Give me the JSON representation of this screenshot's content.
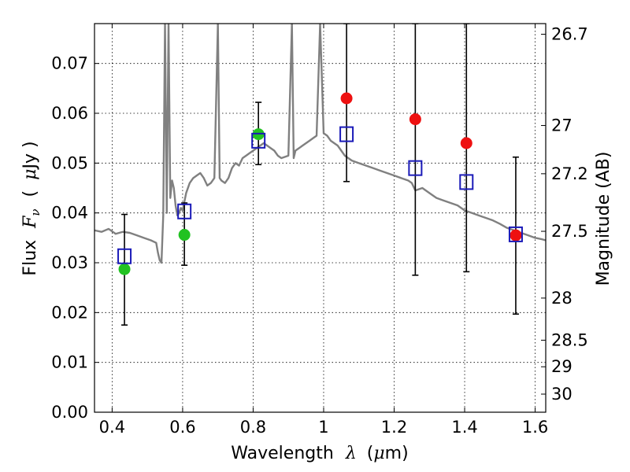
{
  "chart_data": {
    "type": "scatter",
    "title": "",
    "xlabel": {
      "prefix": "Wavelength",
      "symbol": "λ",
      "unit_open": "(",
      "unit_mu": "μ",
      "unit_rest": "m)"
    },
    "ylabel": {
      "prefix": "Flux",
      "symbol": "F",
      "subscript": "ν",
      "unit_open": "(",
      "unit_mu": "μ",
      "unit_rest": "Jy )"
    },
    "y2label": "Magnitude (AB)",
    "xlim": [
      0.35,
      1.63
    ],
    "ylim": [
      0.0,
      0.078
    ],
    "grid": true,
    "grid_style": "dotted",
    "x_ticks": [
      {
        "value": 0.4,
        "label": "0.4"
      },
      {
        "value": 0.6,
        "label": "0.6"
      },
      {
        "value": 0.8,
        "label": "0.8"
      },
      {
        "value": 1.0,
        "label": "1"
      },
      {
        "value": 1.2,
        "label": "1.2"
      },
      {
        "value": 1.4,
        "label": "1.4"
      },
      {
        "value": 1.6,
        "label": "1.6"
      }
    ],
    "y_ticks": [
      {
        "value": 0.0,
        "label": "0.00"
      },
      {
        "value": 0.01,
        "label": "0.01"
      },
      {
        "value": 0.02,
        "label": "0.02"
      },
      {
        "value": 0.03,
        "label": "0.03"
      },
      {
        "value": 0.04,
        "label": "0.04"
      },
      {
        "value": 0.05,
        "label": "0.05"
      },
      {
        "value": 0.06,
        "label": "0.06"
      },
      {
        "value": 0.07,
        "label": "0.07"
      }
    ],
    "mag_ticks": [
      {
        "mag": 26.7,
        "label": "26.7"
      },
      {
        "mag": 27.0,
        "label": "27"
      },
      {
        "mag": 27.2,
        "label": "27.2"
      },
      {
        "mag": 27.5,
        "label": "27.5"
      },
      {
        "mag": 28.0,
        "label": "28"
      },
      {
        "mag": 28.5,
        "label": "28.5"
      },
      {
        "mag": 29.0,
        "label": "29"
      },
      {
        "mag": 30.0,
        "label": "30"
      }
    ],
    "template_spectrum": {
      "color": "#808080",
      "x": [
        0.35,
        0.37,
        0.39,
        0.41,
        0.43,
        0.45,
        0.47,
        0.49,
        0.51,
        0.525,
        0.53,
        0.535,
        0.54,
        0.545,
        0.55,
        0.555,
        0.56,
        0.565,
        0.57,
        0.575,
        0.58,
        0.585,
        0.59,
        0.595,
        0.6,
        0.61,
        0.62,
        0.63,
        0.64,
        0.65,
        0.66,
        0.67,
        0.68,
        0.69,
        0.7,
        0.705,
        0.71,
        0.72,
        0.73,
        0.74,
        0.75,
        0.76,
        0.77,
        0.78,
        0.79,
        0.8,
        0.81,
        0.82,
        0.83,
        0.84,
        0.85,
        0.86,
        0.87,
        0.88,
        0.9,
        0.91,
        0.915,
        0.92,
        0.93,
        0.94,
        0.95,
        0.96,
        0.97,
        0.98,
        0.99,
        1.0,
        1.01,
        1.02,
        1.03,
        1.04,
        1.05,
        1.06,
        1.08,
        1.1,
        1.12,
        1.14,
        1.16,
        1.18,
        1.2,
        1.22,
        1.24,
        1.25,
        1.26,
        1.28,
        1.3,
        1.32,
        1.34,
        1.36,
        1.38,
        1.4,
        1.42,
        1.44,
        1.46,
        1.48,
        1.5,
        1.52,
        1.54,
        1.56,
        1.58,
        1.6,
        1.62,
        1.63
      ],
      "y": [
        0.0365,
        0.0362,
        0.0368,
        0.0358,
        0.0362,
        0.036,
        0.0355,
        0.035,
        0.0345,
        0.034,
        0.032,
        0.0305,
        0.03,
        0.0395,
        0.078,
        0.04,
        0.078,
        0.043,
        0.0465,
        0.045,
        0.0415,
        0.0395,
        0.04,
        0.041,
        0.0405,
        0.044,
        0.046,
        0.047,
        0.0475,
        0.048,
        0.047,
        0.0455,
        0.046,
        0.047,
        0.078,
        0.047,
        0.0465,
        0.046,
        0.047,
        0.049,
        0.05,
        0.0495,
        0.051,
        0.0515,
        0.052,
        0.0525,
        0.053,
        0.0535,
        0.054,
        0.0535,
        0.053,
        0.0525,
        0.0515,
        0.051,
        0.0515,
        0.078,
        0.051,
        0.0525,
        0.053,
        0.0535,
        0.054,
        0.0545,
        0.055,
        0.0555,
        0.078,
        0.056,
        0.0555,
        0.0545,
        0.054,
        0.0535,
        0.0525,
        0.0515,
        0.0505,
        0.05,
        0.0495,
        0.049,
        0.0485,
        0.048,
        0.0475,
        0.047,
        0.0465,
        0.046,
        0.0445,
        0.045,
        0.044,
        0.043,
        0.0425,
        0.042,
        0.0415,
        0.0405,
        0.04,
        0.0395,
        0.039,
        0.0385,
        0.0378,
        0.037,
        0.0365,
        0.036,
        0.0355,
        0.035,
        0.0347,
        0.0345
      ]
    },
    "series": [
      {
        "marker": "circle",
        "color": "#22c222",
        "x": [
          0.435,
          0.605,
          0.815
        ],
        "y": [
          0.0287,
          0.0356,
          0.0558
        ]
      },
      {
        "marker": "circle",
        "color": "#ee1111",
        "x": [
          1.065,
          1.26,
          1.405,
          1.545
        ],
        "y": [
          0.063,
          0.0588,
          0.054,
          0.0355
        ]
      },
      {
        "marker": "open-square",
        "color": "#1a1ab8",
        "x": [
          0.435,
          0.605,
          0.815,
          1.065,
          1.26,
          1.405,
          1.545
        ],
        "y": [
          0.0313,
          0.0403,
          0.0545,
          0.0558,
          0.049,
          0.0462,
          0.0357
        ]
      }
    ],
    "errorbars": {
      "color": "#000000",
      "x": [
        0.435,
        0.605,
        0.815,
        1.065,
        1.26,
        1.405,
        1.545
      ],
      "ylow": [
        0.0175,
        0.0295,
        0.0497,
        0.0463,
        0.0275,
        0.0282,
        0.0197
      ],
      "yhigh": [
        0.0397,
        0.042,
        0.0622,
        0.078,
        0.078,
        0.078,
        0.0512
      ]
    }
  }
}
